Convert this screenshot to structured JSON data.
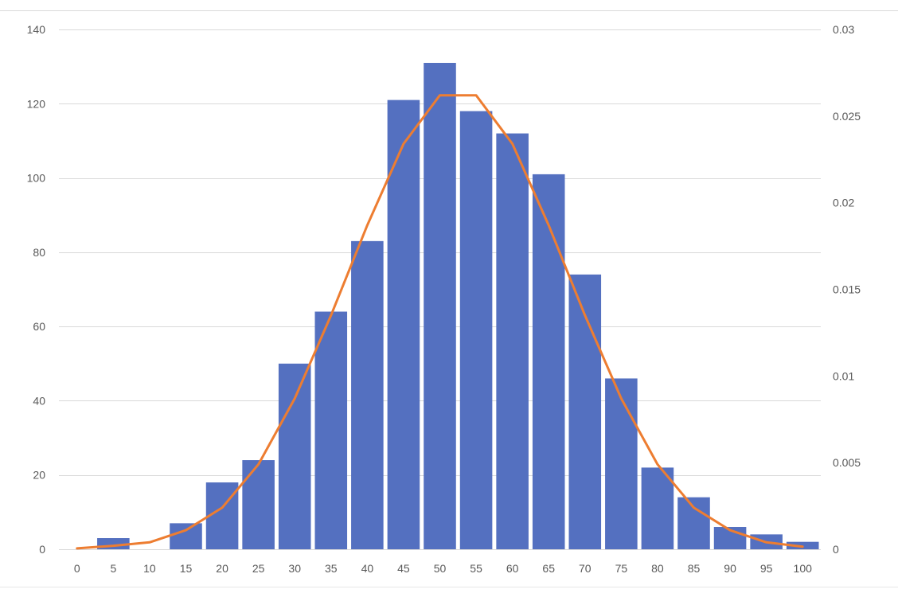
{
  "chart_data": {
    "type": "bar",
    "title": "",
    "xlabel": "",
    "ylabel": "",
    "y2label": "",
    "x_ticks": [
      "0",
      "5",
      "10",
      "15",
      "20",
      "25",
      "30",
      "35",
      "40",
      "45",
      "50",
      "55",
      "60",
      "65",
      "70",
      "75",
      "80",
      "85",
      "90",
      "95",
      "100"
    ],
    "ylim": [
      0,
      140
    ],
    "y_ticks": [
      0,
      20,
      40,
      60,
      80,
      100,
      120,
      140
    ],
    "y2lim": [
      0,
      0.03
    ],
    "y2_ticks": [
      "0",
      "0.005",
      "0.01",
      "0.015",
      "0.02",
      "0.025",
      "0.03"
    ],
    "grid": true,
    "legend": "none",
    "series": [
      {
        "type": "bar",
        "axis": "left",
        "color": "#5470c0",
        "x": [
          5,
          10,
          15,
          20,
          25,
          30,
          35,
          40,
          45,
          50,
          55,
          60,
          65,
          70,
          75,
          80,
          85,
          90,
          95,
          100
        ],
        "values": [
          3,
          0,
          7,
          18,
          24,
          50,
          64,
          83,
          121,
          131,
          118,
          112,
          101,
          74,
          46,
          22,
          14,
          6,
          4,
          2
        ]
      },
      {
        "type": "line",
        "axis": "right",
        "color": "#ed7d31",
        "x": [
          0,
          5,
          10,
          15,
          20,
          25,
          30,
          35,
          40,
          45,
          50,
          55,
          60,
          65,
          70,
          75,
          80,
          85,
          90,
          95,
          100
        ],
        "values": [
          5e-05,
          0.0002,
          0.0004,
          0.0011,
          0.0024,
          0.0049,
          0.0087,
          0.0135,
          0.0187,
          0.0234,
          0.0262,
          0.0262,
          0.0234,
          0.0187,
          0.0135,
          0.0087,
          0.0049,
          0.0024,
          0.0011,
          0.0004,
          0.00015
        ]
      }
    ]
  }
}
